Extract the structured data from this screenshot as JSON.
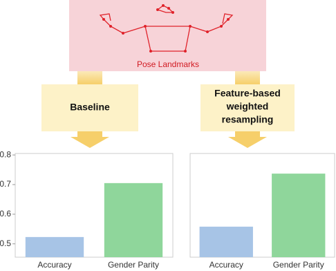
{
  "diagram": {
    "pose_label": "Pose Landmarks",
    "left_box": [
      "Baseline"
    ],
    "right_box": [
      "Feature-based",
      "weighted",
      "resampling"
    ]
  },
  "chart_data": [
    {
      "type": "bar",
      "categories": [
        "Accuracy",
        "Gender Parity"
      ],
      "values": [
        0.523,
        0.705
      ],
      "colors": [
        "#a7c4e6",
        "#8fd69b"
      ],
      "ylim": [
        0.455,
        0.805
      ],
      "yticks": [
        0.5,
        0.6,
        0.7,
        0.8
      ]
    },
    {
      "type": "bar",
      "categories": [
        "Accuracy",
        "Gender Parity"
      ],
      "values": [
        0.558,
        0.737
      ],
      "colors": [
        "#a7c4e6",
        "#8fd69b"
      ],
      "ylim": [
        0.455,
        0.805
      ]
    }
  ]
}
